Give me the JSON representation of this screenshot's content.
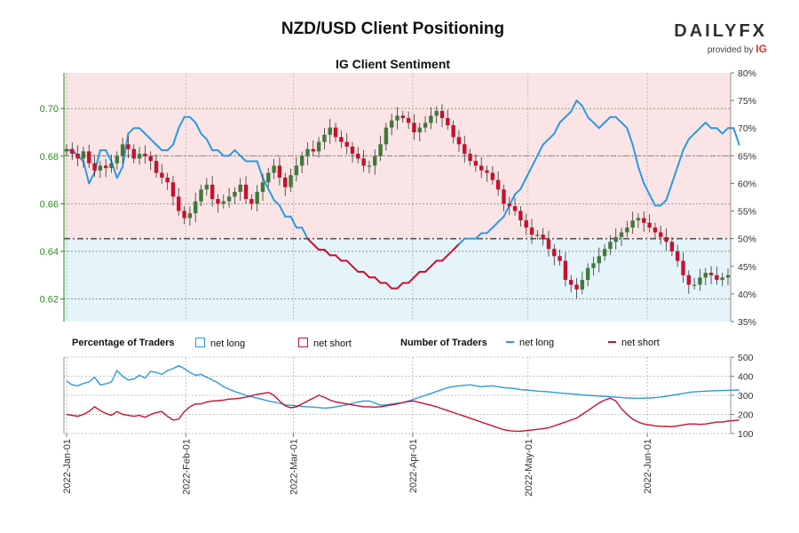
{
  "header": {
    "title": "NZD/USD Client Positioning",
    "subtitle": "IG Client Sentiment"
  },
  "logo": {
    "brand_a": "DAILY",
    "brand_b": "FX",
    "provided": "provided by",
    "ig": "IG"
  },
  "legend": {
    "pct_title": "Percentage of Traders",
    "num_title": "Number of Traders",
    "net_long": "net long",
    "net_short": "net short"
  },
  "colors": {
    "long": "#2a9ae0",
    "short": "#c8102e",
    "long_fill": "#e5f3fb",
    "short_fill": "#fbe4e6",
    "bull": "#3f7a3a",
    "bear": "#c8102e",
    "price_axis": "#2e8b22",
    "grid": "#6a9a5a"
  },
  "chart_data": [
    {
      "type": "candlestick+line",
      "title": "IG Client Sentiment",
      "price_axis": {
        "ticks": [
          "0.70",
          "0.68",
          "0.66",
          "0.64",
          "0.62"
        ],
        "ylim": [
          0.6105,
          0.715
        ]
      },
      "percent_axis": {
        "ticks": [
          "80%",
          "75%",
          "70%",
          "65%",
          "60%",
          "55%",
          "50%",
          "45%",
          "40%",
          "35%"
        ],
        "ylim": [
          35,
          80
        ]
      },
      "x_ticks": [
        "2022-Jan-01",
        "2022-Feb-01",
        "2022-Mar-01",
        "2022-Apr-01",
        "2022-May-01",
        "2022-Jun-01"
      ],
      "price_close": [
        0.683,
        0.681,
        0.679,
        0.682,
        0.677,
        0.674,
        0.676,
        0.675,
        0.677,
        0.68,
        0.685,
        0.683,
        0.679,
        0.681,
        0.68,
        0.678,
        0.673,
        0.671,
        0.669,
        0.663,
        0.657,
        0.654,
        0.656,
        0.661,
        0.666,
        0.668,
        0.662,
        0.66,
        0.661,
        0.663,
        0.665,
        0.668,
        0.662,
        0.66,
        0.665,
        0.669,
        0.673,
        0.676,
        0.671,
        0.667,
        0.672,
        0.676,
        0.68,
        0.683,
        0.682,
        0.686,
        0.689,
        0.692,
        0.688,
        0.686,
        0.684,
        0.681,
        0.679,
        0.676,
        0.676,
        0.68,
        0.685,
        0.692,
        0.695,
        0.697,
        0.696,
        0.694,
        0.69,
        0.692,
        0.694,
        0.697,
        0.699,
        0.696,
        0.693,
        0.688,
        0.685,
        0.681,
        0.678,
        0.676,
        0.674,
        0.673,
        0.67,
        0.666,
        0.66,
        0.659,
        0.657,
        0.653,
        0.65,
        0.647,
        0.647,
        0.645,
        0.641,
        0.638,
        0.636,
        0.628,
        0.626,
        0.624,
        0.628,
        0.633,
        0.635,
        0.638,
        0.641,
        0.644,
        0.646,
        0.648,
        0.65,
        0.653,
        0.654,
        0.652,
        0.65,
        0.648,
        0.646,
        0.644,
        0.64,
        0.636,
        0.63,
        0.626,
        0.626,
        0.629,
        0.631,
        0.63,
        0.628,
        0.629,
        0.63
      ],
      "pct_long": [
        66,
        66,
        65,
        64,
        60,
        62,
        66,
        66,
        64,
        61,
        63,
        69,
        70,
        70,
        69,
        68,
        67,
        66,
        66,
        67,
        70,
        72,
        72,
        71,
        69,
        68,
        66,
        66,
        65,
        65,
        66,
        65,
        64,
        64,
        64,
        61,
        59,
        57,
        56,
        54,
        54,
        52,
        52,
        50,
        49,
        48,
        48,
        47,
        47,
        46,
        46,
        45,
        44,
        44,
        43,
        43,
        42,
        42,
        41,
        41,
        42,
        42,
        43,
        44,
        44,
        45,
        46,
        46,
        47,
        48,
        49,
        50,
        50,
        50,
        51,
        51,
        52,
        53,
        54,
        56,
        58,
        59,
        61,
        63,
        65,
        67,
        68,
        69,
        71,
        72,
        73,
        75,
        74,
        72,
        71,
        70,
        71,
        72,
        72,
        71,
        70,
        67,
        63,
        60,
        58,
        56,
        56,
        57,
        60,
        63,
        66,
        68,
        69,
        70,
        71,
        70,
        70,
        69,
        70,
        70,
        67
      ],
      "traders_long": [
        375,
        355,
        350,
        362,
        370,
        395,
        355,
        360,
        370,
        430,
        400,
        380,
        385,
        405,
        390,
        425,
        420,
        410,
        430,
        440,
        455,
        440,
        420,
        405,
        410,
        395,
        380,
        365,
        345,
        332,
        320,
        310,
        300,
        292,
        285,
        278,
        270,
        265,
        258,
        250,
        248,
        245,
        242,
        240,
        238,
        236,
        233,
        235,
        240,
        245,
        250,
        258,
        265,
        270,
        270,
        260,
        248,
        250,
        255,
        258,
        262,
        270,
        280,
        290,
        300,
        310,
        320,
        330,
        340,
        345,
        350,
        352,
        355,
        350,
        345,
        348,
        350,
        345,
        340,
        338,
        335,
        330,
        328,
        325,
        322,
        320,
        318,
        315,
        312,
        310,
        308,
        305,
        302,
        300,
        298,
        296,
        294,
        292,
        290,
        288,
        286,
        285,
        284,
        285,
        286,
        288,
        290,
        295,
        300,
        305,
        310,
        315,
        318,
        320,
        322,
        323,
        324,
        325,
        326,
        327,
        328
      ],
      "traders_short": [
        200,
        195,
        190,
        200,
        215,
        240,
        220,
        205,
        195,
        215,
        200,
        195,
        190,
        195,
        185,
        200,
        210,
        215,
        190,
        170,
        175,
        215,
        240,
        255,
        255,
        265,
        270,
        272,
        275,
        280,
        282,
        285,
        290,
        298,
        305,
        310,
        315,
        300,
        270,
        245,
        235,
        240,
        255,
        270,
        285,
        300,
        290,
        275,
        265,
        260,
        255,
        250,
        245,
        240,
        240,
        238,
        240,
        245,
        250,
        255,
        262,
        268,
        270,
        262,
        255,
        248,
        240,
        230,
        220,
        210,
        200,
        190,
        180,
        170,
        160,
        150,
        140,
        130,
        120,
        115,
        112,
        112,
        115,
        118,
        122,
        125,
        130,
        140,
        150,
        160,
        170,
        180,
        200,
        220,
        240,
        260,
        275,
        285,
        270,
        230,
        200,
        175,
        160,
        150,
        145,
        140,
        138,
        137,
        136,
        140,
        145,
        150,
        150,
        148,
        150,
        155,
        160,
        160,
        165,
        168,
        170
      ]
    }
  ]
}
